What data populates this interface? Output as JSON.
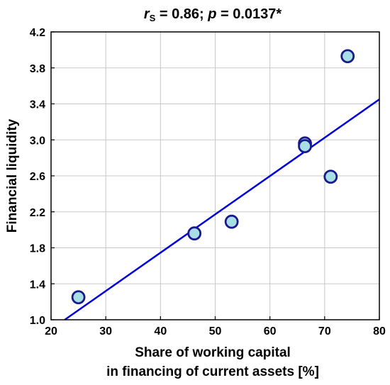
{
  "chart_data": {
    "type": "scatter",
    "title_parts": {
      "stat_symbol": "r",
      "stat_subscript": "S",
      "stat_text": " = 0.86; ",
      "p_symbol": "p",
      "p_text": " = 0.0137*"
    },
    "xlabel_lines": [
      "Share of working capital",
      "in financing of current assets [%]"
    ],
    "ylabel": "Financial liquidity",
    "xlim": [
      20,
      80
    ],
    "ylim": [
      1.0,
      4.2
    ],
    "xticks": [
      20,
      30,
      40,
      50,
      60,
      70,
      80
    ],
    "xtick_labels": [
      "20",
      "30",
      "40",
      "50",
      "60",
      "70",
      "80"
    ],
    "yticks": [
      1.0,
      1.4,
      1.8,
      2.2,
      2.6,
      3.0,
      3.4,
      3.8,
      4.2
    ],
    "ytick_labels": [
      "1.0",
      "1.4",
      "1.8",
      "2.2",
      "2.6",
      "3.0",
      "3.4",
      "3.8",
      "4.2"
    ],
    "grid": true,
    "points": [
      {
        "x": 25.0,
        "y": 1.25
      },
      {
        "x": 46.2,
        "y": 1.96
      },
      {
        "x": 53.0,
        "y": 2.09
      },
      {
        "x": 66.4,
        "y": 2.96
      },
      {
        "x": 66.4,
        "y": 2.93
      },
      {
        "x": 71.1,
        "y": 2.59
      },
      {
        "x": 74.2,
        "y": 3.93
      }
    ],
    "fit_line": {
      "x": [
        22.5,
        80
      ],
      "y": [
        1.0,
        3.45
      ]
    },
    "colors": {
      "point_fill": "#a8dfe6",
      "point_stroke": "#1a1a8c",
      "fit_line": "#0000dd",
      "grid": "#c8c8c8",
      "frame": "#000000"
    }
  }
}
